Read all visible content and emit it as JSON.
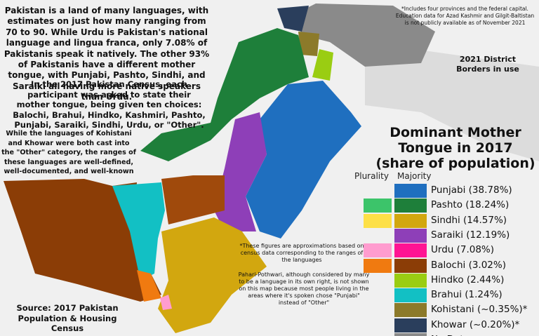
{
  "intro": [
    "Pakistan is a land of many languages, with estimates on just how many ranging from 70 to 90. While Urdu is Pakistan's national language and lingua franca, only 7.08% of Pakistanis speak it natively. The other 93% of Pakistanis have a different mother tongue, with Punjabi, Pashto, Sindhi, and Saraiki all having more native speakers than Urdu.",
    "In the 2017 Pakistan Census, each participant was asked to state their mother tongue, being given ten choices: Balochi, Brahui, Hindko, Kashmiri, Pashto, Punjabi, Saraiki, Sindhi, Urdu, or \"Other\".",
    "While the languages of Kohistani and Khowar were both cast into the \"Other\" category, the ranges of these languages are well-defined, well-documented, and well-known"
  ],
  "top_note": "*Includes four provinces and the federal capital. Education data for Azad Kashmir and Gilgit-Baltistan is not publicly available as of November 2021",
  "borders_note": "2021 District Borders in use",
  "title": [
    "Dominant Mother",
    "Tongue in 2017",
    "(share of population)"
  ],
  "legend": {
    "headers": [
      "Plurality",
      "Majority"
    ],
    "items": [
      {
        "label": "Punjabi (38.78%)",
        "majority_color": "#1f6fbf"
      },
      {
        "label": "Pashto (18.24%)",
        "plurality_color": "#3cc46a",
        "majority_color": "#1e7f3a"
      },
      {
        "label": "Sindhi (14.57%)",
        "plurality_color": "#fde047",
        "majority_color": "#d2a70f"
      },
      {
        "label": "Saraiki (12.19%)",
        "majority_color": "#8e3fb8"
      },
      {
        "label": "Urdu (7.08%)",
        "plurality_color": "#ff9ccf",
        "majority_color": "#ff1493"
      },
      {
        "label": "Balochi (3.02%)",
        "plurality_color": "#f07a10",
        "majority_color": "#8b3d06"
      },
      {
        "label": "Hindko (2.44%)",
        "majority_color": "#9acd12"
      },
      {
        "label": "Brahui (1.24%)",
        "majority_color": "#12c0c4"
      },
      {
        "label": "Kohistani (~0.35%)*",
        "majority_color": "#8c7a2a"
      },
      {
        "label": "Khowar (~0.20%)*",
        "majority_color": "#2a3e5c"
      },
      {
        "label": "No Data",
        "majority_color": "#8a8a8a"
      }
    ]
  },
  "approx_note": "*These figures are approximations based on census data corresponding to the ranges of the languages",
  "pahari_note": "Pahari-Pothwari, although considered by many to be a language in its own right, is not shown on this map because most people living in the areas where it's spoken chose \"Punjabi\" instead of \"Other\"",
  "source": "Source: 2017 Pakistan Population & Housing Census"
}
